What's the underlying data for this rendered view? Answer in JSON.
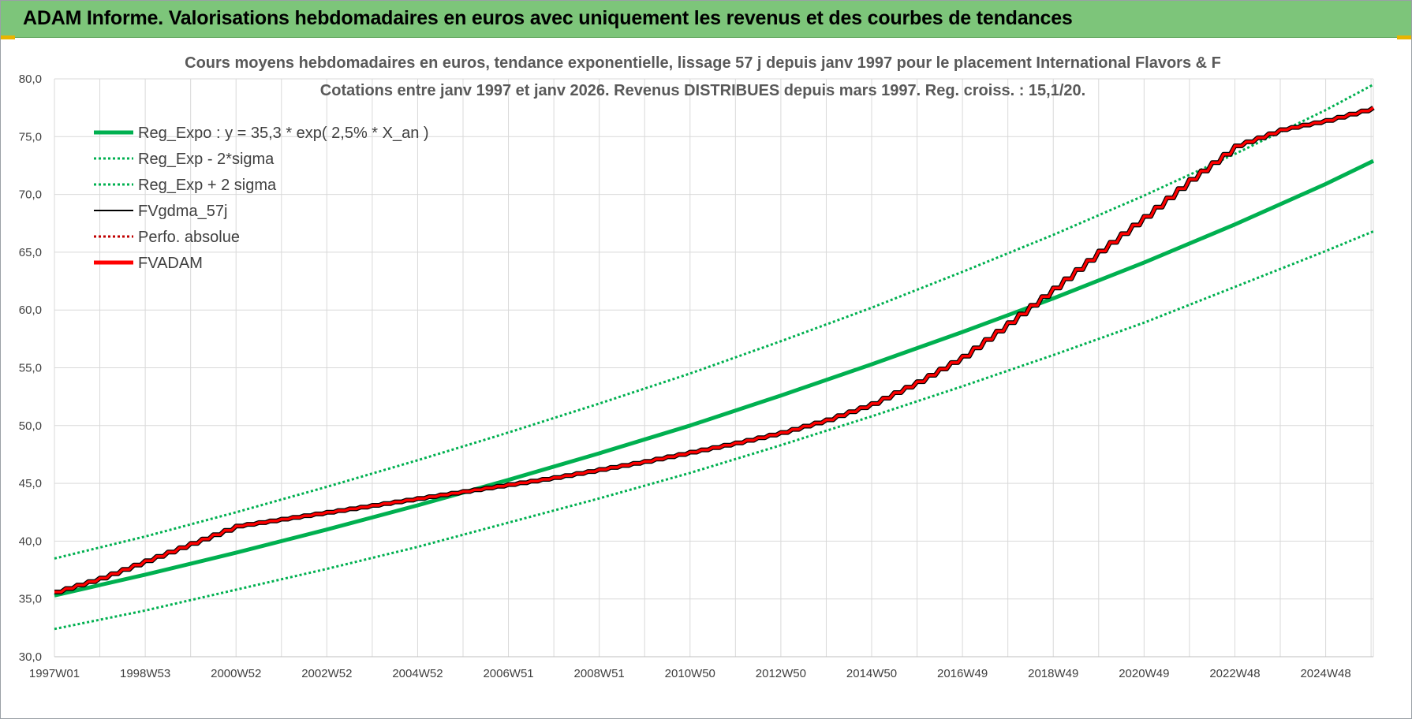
{
  "banner": {
    "title": "ADAM Informe. Valorisations hebdomadaires en euros avec uniquement les revenus et des courbes de tendances"
  },
  "colors": {
    "banner_bg": "#7dc57a",
    "trend": "#00b050",
    "fvadam": "#ff0000",
    "fvgdma": "#000000",
    "perfo": "#c00000",
    "grid": "#d9d9d9"
  },
  "chart_data": {
    "type": "line",
    "title_lines": [
      "Cours moyens hebdomadaires en euros, tendance exponentielle, lissage 57 j depuis janv 1997  pour le placement International Flavors & F",
      "Cotations entre janv 1997 et janv 2026. Revenus DISTRIBUES depuis mars 1997. Reg. croiss. : 15,1/20."
    ],
    "xlabel": "",
    "ylabel": "",
    "ylim": [
      30,
      80
    ],
    "xlim": [
      1997.0,
      2026.05
    ],
    "grid": true,
    "legend_position": "top-left",
    "y_ticks": [
      "30,0",
      "35,0",
      "40,0",
      "45,0",
      "50,0",
      "55,0",
      "60,0",
      "65,0",
      "70,0",
      "75,0",
      "80,0"
    ],
    "x_ticks": [
      {
        "label": "1997W01",
        "x": 1997.0
      },
      {
        "label": "1998W53",
        "x": 1999.0
      },
      {
        "label": "2000W52",
        "x": 2001.0
      },
      {
        "label": "2002W52",
        "x": 2003.0
      },
      {
        "label": "2004W52",
        "x": 2005.0
      },
      {
        "label": "2006W51",
        "x": 2007.0
      },
      {
        "label": "2008W51",
        "x": 2009.0
      },
      {
        "label": "2010W50",
        "x": 2011.0
      },
      {
        "label": "2012W50",
        "x": 2013.0
      },
      {
        "label": "2014W50",
        "x": 2015.0
      },
      {
        "label": "2016W49",
        "x": 2017.0
      },
      {
        "label": "2018W49",
        "x": 2019.0
      },
      {
        "label": "2020W49",
        "x": 2021.0
      },
      {
        "label": "2022W48",
        "x": 2023.0
      },
      {
        "label": "2024W48",
        "x": 2025.0
      }
    ],
    "series": [
      {
        "name": "Reg_Expo : y = 35,3 * exp( 2,5% *  X_an )",
        "style": "solid-thick",
        "color": "#00b050",
        "x": [
          1997,
          1999,
          2001,
          2003,
          2005,
          2007,
          2009,
          2011,
          2013,
          2015,
          2017,
          2019,
          2021,
          2023,
          2025,
          2026.05
        ],
        "values": [
          35.3,
          37.1,
          39.0,
          41.0,
          43.1,
          45.3,
          47.6,
          50.0,
          52.6,
          55.3,
          58.1,
          61.0,
          64.1,
          67.4,
          70.9,
          72.9
        ]
      },
      {
        "name": "Reg_Exp - 2*sigma",
        "style": "dotted",
        "color": "#00b050",
        "x": [
          1997,
          1999,
          2001,
          2003,
          2005,
          2007,
          2009,
          2011,
          2013,
          2015,
          2017,
          2019,
          2021,
          2023,
          2025,
          2026.05
        ],
        "values": [
          32.4,
          34.0,
          35.8,
          37.6,
          39.5,
          41.6,
          43.7,
          45.9,
          48.3,
          50.8,
          53.4,
          56.1,
          58.9,
          62.0,
          65.1,
          66.8
        ]
      },
      {
        "name": "Reg_Exp + 2 sigma",
        "style": "dotted",
        "color": "#00b050",
        "x": [
          1997,
          1999,
          2001,
          2003,
          2005,
          2007,
          2009,
          2011,
          2013,
          2015,
          2017,
          2019,
          2021,
          2023,
          2025,
          2026.05
        ],
        "values": [
          38.5,
          40.4,
          42.5,
          44.7,
          47.0,
          49.4,
          51.9,
          54.5,
          57.3,
          60.2,
          63.3,
          66.5,
          69.9,
          73.5,
          77.3,
          79.5
        ]
      },
      {
        "name": "FVgdma_57j",
        "style": "solid",
        "color": "#000000",
        "x": [
          1997,
          1998,
          1999,
          2000,
          2001,
          2002,
          2003,
          2004,
          2005,
          2006,
          2007,
          2008,
          2009,
          2010,
          2011,
          2012,
          2013,
          2014,
          2015,
          2016,
          2017,
          2018,
          2019,
          2020,
          2021,
          2022,
          2023,
          2024,
          2025,
          2026.05
        ],
        "values": [
          35.6,
          36.8,
          38.3,
          39.8,
          41.3,
          41.9,
          42.5,
          43.1,
          43.7,
          44.3,
          44.9,
          45.5,
          46.2,
          46.9,
          47.7,
          48.5,
          49.4,
          50.5,
          51.9,
          53.8,
          56.0,
          58.9,
          61.9,
          65.1,
          68.1,
          71.3,
          74.2,
          75.6,
          76.4,
          77.5
        ]
      },
      {
        "name": "Perfo. absolue",
        "style": "dotted",
        "color": "#c00000",
        "x": [],
        "values": []
      },
      {
        "name": "FVADAM",
        "style": "solid-thick",
        "color": "#ff0000",
        "x": [
          1997,
          1998,
          1999,
          2000,
          2001,
          2002,
          2003,
          2004,
          2005,
          2006,
          2007,
          2008,
          2009,
          2010,
          2011,
          2012,
          2013,
          2014,
          2015,
          2016,
          2017,
          2018,
          2019,
          2020,
          2021,
          2022,
          2023,
          2024,
          2025,
          2026.05
        ],
        "values": [
          35.6,
          36.8,
          38.3,
          39.8,
          41.3,
          41.9,
          42.5,
          43.1,
          43.7,
          44.3,
          44.9,
          45.5,
          46.2,
          46.9,
          47.7,
          48.5,
          49.4,
          50.5,
          51.9,
          53.8,
          56.0,
          58.9,
          61.9,
          65.1,
          68.1,
          71.3,
          74.2,
          75.6,
          76.4,
          77.5
        ]
      }
    ]
  }
}
